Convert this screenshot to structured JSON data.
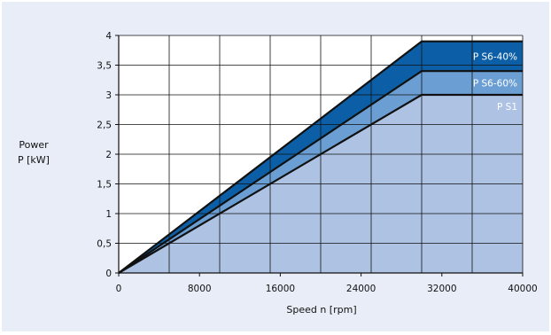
{
  "chart_data": {
    "type": "area",
    "xlabel": "Speed n [rpm]",
    "ylabel_lines": [
      "Power",
      "P [kW]"
    ],
    "xlim": [
      0,
      40000
    ],
    "ylim": [
      0,
      4
    ],
    "x_ticks": [
      {
        "value": 0,
        "label": "0"
      },
      {
        "value": 8000,
        "label": "8000"
      },
      {
        "value": 16000,
        "label": "16000"
      },
      {
        "value": 24000,
        "label": "24000"
      },
      {
        "value": 32000,
        "label": "32000"
      },
      {
        "value": 40000,
        "label": "40000"
      }
    ],
    "y_ticks": [
      {
        "value": 0,
        "label": "0"
      },
      {
        "value": 0.5,
        "label": "0,5"
      },
      {
        "value": 1,
        "label": "1"
      },
      {
        "value": 1.5,
        "label": "1,5"
      },
      {
        "value": 2,
        "label": "2"
      },
      {
        "value": 2.5,
        "label": "2,5"
      },
      {
        "value": 3,
        "label": "3"
      },
      {
        "value": 3.5,
        "label": "3,5"
      },
      {
        "value": 4,
        "label": "4"
      }
    ],
    "x_grid": [
      0,
      5000,
      10000,
      15000,
      20000,
      25000,
      30000,
      35000,
      40000
    ],
    "grid": true,
    "series": [
      {
        "name": "P S6-40%",
        "color": "#0c5fa6",
        "x": [
          0,
          30000,
          40000
        ],
        "y": [
          0,
          3.9,
          3.9
        ]
      },
      {
        "name": "P S6-60%",
        "color": "#6b9fd4",
        "x": [
          0,
          30000,
          40000
        ],
        "y": [
          0,
          3.4,
          3.4
        ]
      },
      {
        "name": "P S1",
        "color": "#aec3e3",
        "x": [
          0,
          30000,
          40000
        ],
        "y": [
          0,
          3.0,
          3.0
        ]
      }
    ],
    "legend_placement": "inline-right"
  }
}
